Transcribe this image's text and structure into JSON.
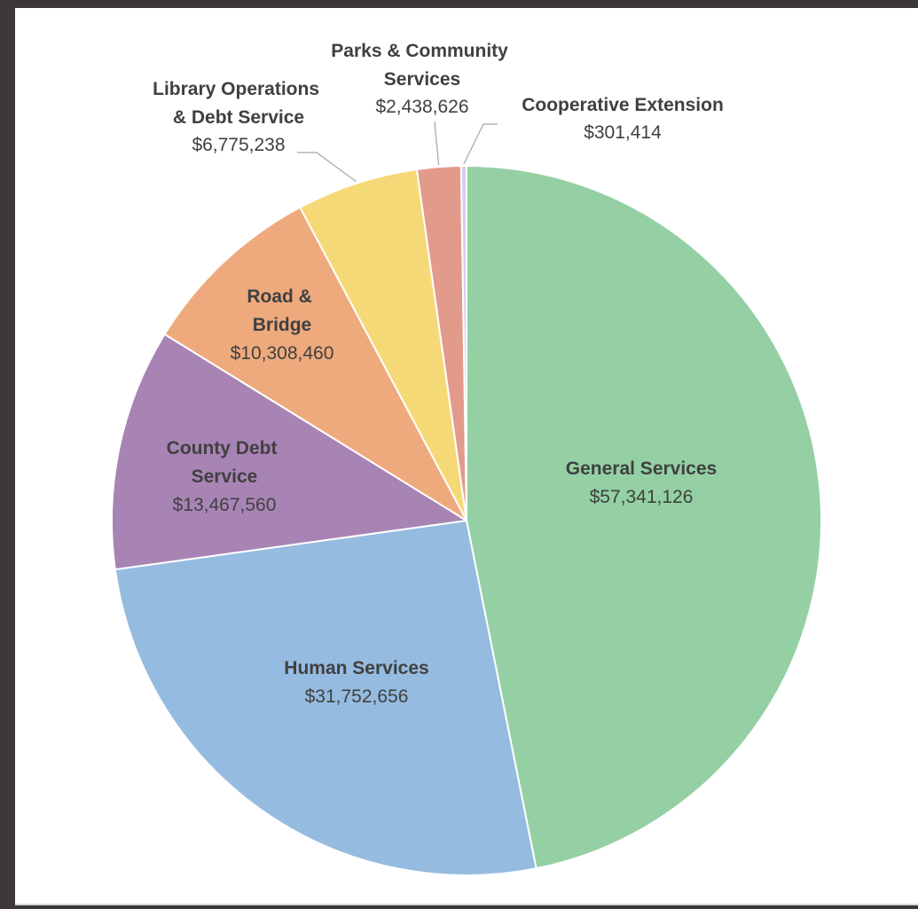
{
  "chart_data": {
    "type": "pie",
    "title": "",
    "start_angle_deg": 0,
    "direction": "clockwise",
    "slices": [
      {
        "name": "General Services",
        "value_label": "$57,341,126",
        "value": 57341126,
        "color": "#94d0a3"
      },
      {
        "name": "Human Services",
        "value_label": "$31,752,656",
        "value": 31752656,
        "color": "#95bbe0"
      },
      {
        "name": "County Debt Service",
        "value_label": "$13,467,560",
        "value": 13467560,
        "color": "#a884b5"
      },
      {
        "name": "Road & Bridge",
        "value_label": "$10,308,460",
        "value": 10308460,
        "color": "#eeaa7d"
      },
      {
        "name": "Library Operations & Debt Service",
        "value_label": "$6,775,238",
        "value": 6775238,
        "color": "#f6d977"
      },
      {
        "name": "Parks & Community Services",
        "value_label": "$2,438,626",
        "value": 2438626,
        "color": "#e29a8b"
      },
      {
        "name": "Cooperative Extension",
        "value_label": "$301,414",
        "value": 301414,
        "color": "#d9cdee"
      }
    ]
  }
}
